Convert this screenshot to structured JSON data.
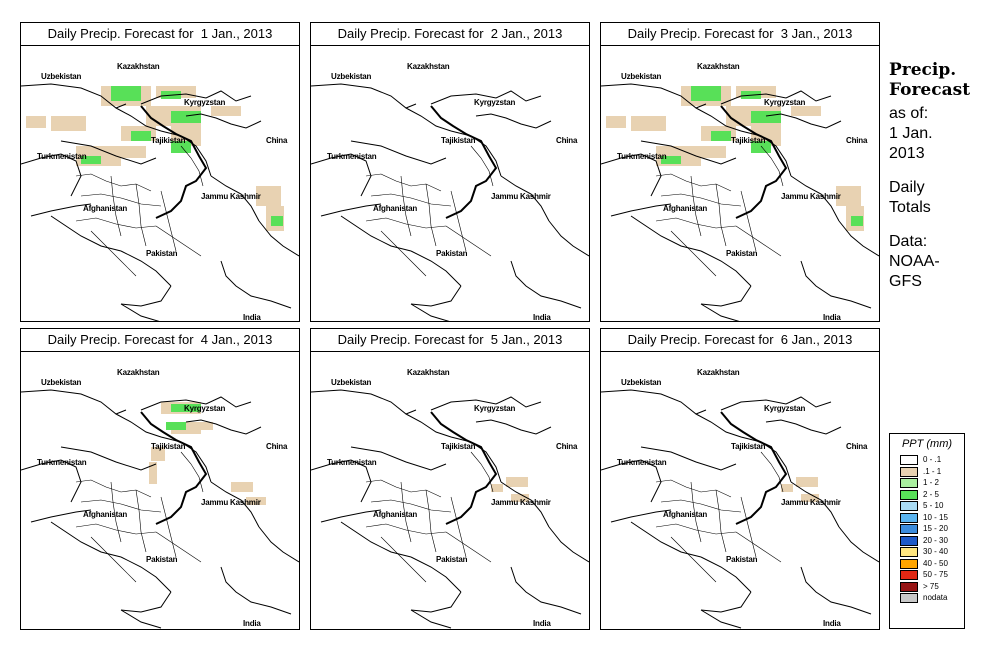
{
  "panels": [
    {
      "title": "Daily Precip. Forecast for  1 Jan., 2013",
      "level": 3
    },
    {
      "title": "Daily Precip. Forecast for  2 Jan., 2013",
      "level": 0
    },
    {
      "title": "Daily Precip. Forecast for  3 Jan., 2013",
      "level": 3
    },
    {
      "title": "Daily Precip. Forecast for  4 Jan., 2013",
      "level": 2
    },
    {
      "title": "Daily Precip. Forecast for  5 Jan., 2013",
      "level": 1
    },
    {
      "title": "Daily Precip. Forecast for  6 Jan., 2013",
      "level": 1
    }
  ],
  "countries": {
    "kazakhstan": "Kazakhstan",
    "uzbekistan": "Uzbekistan",
    "kyrgyzstan": "Kyrgyzstan",
    "tajikistan": "Tajikistan",
    "turkmenistan": "Turkmenistan",
    "china": "China",
    "jammu_kashmir": "Jammu Kashmir",
    "afghanistan": "Afghanistan",
    "pakistan": "Pakistan",
    "india": "India"
  },
  "sidebar": {
    "title_line1": "Precip.",
    "title_line2": "Forecast",
    "asof_line1": "as of:",
    "asof_line2": "1 Jan.",
    "asof_line3": "2013",
    "totals_line1": "Daily",
    "totals_line2": "Totals",
    "data_line1": "Data:",
    "data_line2": "NOAA-",
    "data_line3": "GFS"
  },
  "legend": {
    "title": "PPT (mm)",
    "items": [
      {
        "label": "0 - .1",
        "color": "#ffffff"
      },
      {
        "label": ".1 - 1",
        "color": "#e8d2b2"
      },
      {
        "label": "1 - 2",
        "color": "#aaf0a0"
      },
      {
        "label": "2 - 5",
        "color": "#58e058"
      },
      {
        "label": "5 - 10",
        "color": "#aadcf5"
      },
      {
        "label": "10 - 15",
        "color": "#5ab4f0"
      },
      {
        "label": "15 - 20",
        "color": "#3c8cdc"
      },
      {
        "label": "20 - 30",
        "color": "#1e5ac8"
      },
      {
        "label": "30 - 40",
        "color": "#ffe680"
      },
      {
        "label": "40 - 50",
        "color": "#ffa500"
      },
      {
        "label": "50 - 75",
        "color": "#e02814"
      },
      {
        "label": "> 75",
        "color": "#961414"
      },
      {
        "label": "nodata",
        "color": "#c8c8c8"
      }
    ]
  }
}
